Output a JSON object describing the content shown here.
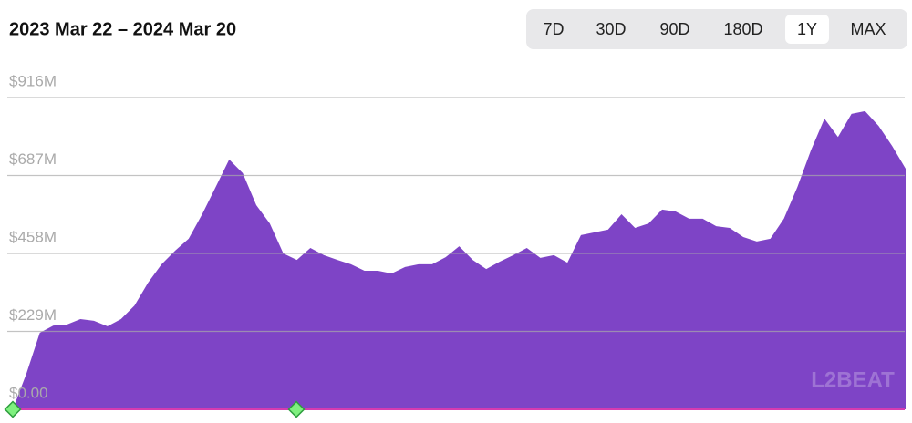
{
  "chart_data": {
    "type": "area",
    "title": "2023 Mar 22 – 2024 Mar 20",
    "range_buttons": [
      "7D",
      "30D",
      "90D",
      "180D",
      "1Y",
      "MAX"
    ],
    "selected_range": "1Y",
    "watermark": "L2BEAT",
    "color": "#7e44c6",
    "ylim": [
      0,
      1000
    ],
    "yticks": [
      {
        "value": 0,
        "label": "$0.00"
      },
      {
        "value": 229,
        "label": "$229M"
      },
      {
        "value": 458,
        "label": "$458M"
      },
      {
        "value": 687,
        "label": "$687M"
      },
      {
        "value": 916,
        "label": "$916M"
      }
    ],
    "grid": true,
    "values": [
      0,
      104,
      225,
      246,
      249,
      265,
      260,
      244,
      265,
      305,
      372,
      426,
      466,
      501,
      573,
      653,
      734,
      694,
      600,
      546,
      458,
      439,
      474,
      453,
      439,
      426,
      407,
      407,
      399,
      418,
      426,
      426,
      447,
      479,
      439,
      412,
      434,
      453,
      474,
      445,
      453,
      431,
      512,
      520,
      528,
      573,
      533,
      546,
      587,
      581,
      560,
      560,
      538,
      533,
      506,
      493,
      501,
      560,
      653,
      761,
      854,
      800,
      868,
      876,
      833,
      774,
      707
    ]
  }
}
